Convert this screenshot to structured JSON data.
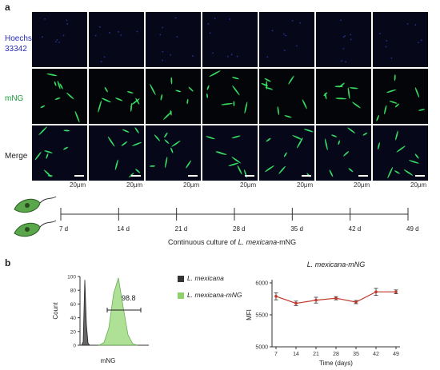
{
  "panel_a": {
    "label": "a",
    "rows": [
      {
        "line1": "Hoechst",
        "line2": "33342",
        "color": "#2b2bb8",
        "stain": "blue"
      },
      {
        "line1": "mNG",
        "line2": "",
        "color": "#1a9a3a",
        "stain": "green"
      },
      {
        "line1": "Merge",
        "line2": "",
        "color": "#222222",
        "stain": "merge"
      }
    ],
    "scale_label": "20μm",
    "timeline_labels": [
      "7 d",
      "14 d",
      "21 d",
      "28 d",
      "35 d",
      "42 d",
      "49 d"
    ],
    "caption_prefix": "Continuous culture of ",
    "caption_italic": "L. mexicana",
    "caption_suffix": "-mNG"
  },
  "panel_b": {
    "label": "b",
    "histogram": {
      "ylabel": "Count",
      "xlabel": "mNG",
      "yticks": [
        "0",
        "20",
        "40",
        "60",
        "80",
        "100"
      ],
      "gate_value": "98.8",
      "legend": [
        {
          "label": "L. mexicana",
          "color": "#333333"
        },
        {
          "label": "L. mexicana-mNG",
          "color": "#8fd16f"
        }
      ]
    },
    "line_chart_title": "L. mexicana-mNG"
  },
  "chart_data": [
    {
      "type": "area",
      "series": [
        {
          "name": "L. mexicana",
          "peak_x": 0,
          "values": [
            0,
            5,
            95,
            30,
            3,
            0
          ]
        },
        {
          "name": "L. mexicana-mNG",
          "values": [
            0,
            4,
            25,
            75,
            98,
            55,
            15,
            2,
            0
          ]
        }
      ],
      "xlabel": "mNG",
      "ylabel": "Count",
      "ylim": [
        0,
        100
      ]
    },
    {
      "type": "line",
      "title": "L. mexicana-mNG",
      "x": [
        7,
        14,
        21,
        28,
        35,
        42,
        49
      ],
      "series": [
        {
          "values": [
            5790,
            5680,
            5730,
            5760,
            5700,
            5860,
            5860
          ],
          "errors": [
            55,
            35,
            45,
            25,
            25,
            55,
            30
          ]
        }
      ],
      "xlabel": "Time (days)",
      "ylabel": "MFI",
      "yticks": [
        "5000",
        "5500",
        "6000"
      ],
      "ylim": [
        5000,
        6000
      ],
      "line_color": "#c0392b",
      "errorbar_color": "#333333"
    }
  ]
}
